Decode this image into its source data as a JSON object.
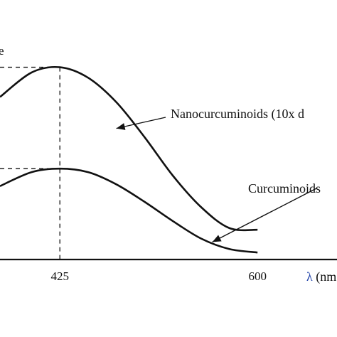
{
  "chart_data": {
    "type": "line",
    "title": "",
    "xlabel": "λ (nm",
    "ylabel_fragment": "e",
    "x_ticks": [
      425,
      600
    ],
    "xlim": [
      372,
      620
    ],
    "ylim": [
      0,
      1.2
    ],
    "grid": false,
    "legend": "none",
    "series": [
      {
        "name": "Nanocurcuminoids (10x d",
        "x": [
          372,
          400,
          425,
          450,
          475,
          500,
          525,
          550,
          575,
          600
        ],
        "y": [
          0.93,
          1.07,
          1.1,
          1.04,
          0.9,
          0.7,
          0.48,
          0.3,
          0.18,
          0.17
        ]
      },
      {
        "name": "Curcuminoids",
        "x": [
          372,
          400,
          425,
          450,
          475,
          500,
          525,
          550,
          575,
          600
        ],
        "y": [
          0.42,
          0.5,
          0.52,
          0.5,
          0.43,
          0.33,
          0.22,
          0.12,
          0.06,
          0.04
        ]
      }
    ],
    "guides": [
      {
        "x": 425,
        "y": 1.1
      },
      {
        "x": 425,
        "y": 0.52
      }
    ],
    "annotations": [
      {
        "text": "Nanocurcuminoids (10x d",
        "arrow_to": {
          "x": 475,
          "y": 0.75
        }
      },
      {
        "text": "Curcuminoids",
        "arrow_to": {
          "x": 560,
          "y": 0.1
        }
      }
    ]
  }
}
